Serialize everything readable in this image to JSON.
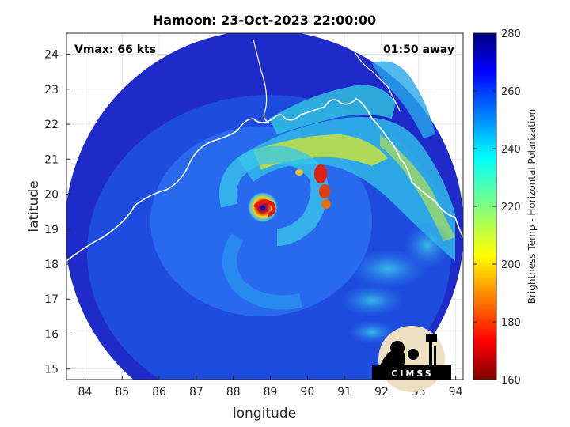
{
  "title": "Hamoon: 23-Oct-2023 22:00:00",
  "annotations": {
    "vmax": "Vmax: 66 kts",
    "away": "01:50 away"
  },
  "logo_text": "CIMSS",
  "colors": {
    "background_field": "#1e2bc8",
    "coastline": "#ffffff",
    "eye_warm": "#d42010",
    "band_yellow": "#d8d830"
  },
  "chart_data": {
    "type": "heatmap",
    "title": "Hamoon: 23-Oct-2023 22:00:00",
    "xlabel": "longitude",
    "ylabel": "latitude",
    "xlim": [
      83.5,
      94.2
    ],
    "ylim": [
      14.7,
      24.6
    ],
    "x_ticks": [
      84,
      85,
      86,
      87,
      88,
      89,
      90,
      91,
      92,
      93,
      94
    ],
    "y_ticks": [
      15,
      16,
      17,
      18,
      19,
      20,
      21,
      22,
      23,
      24
    ],
    "grid": true,
    "storm_center": {
      "lon": 88.8,
      "lat": 19.6
    },
    "colorbar": {
      "label": "Brightness Temp - Horizontal Polarization",
      "min": 160,
      "max": 280,
      "ticks": [
        160,
        180,
        200,
        220,
        240,
        260,
        280
      ],
      "colormap": "jet"
    }
  }
}
